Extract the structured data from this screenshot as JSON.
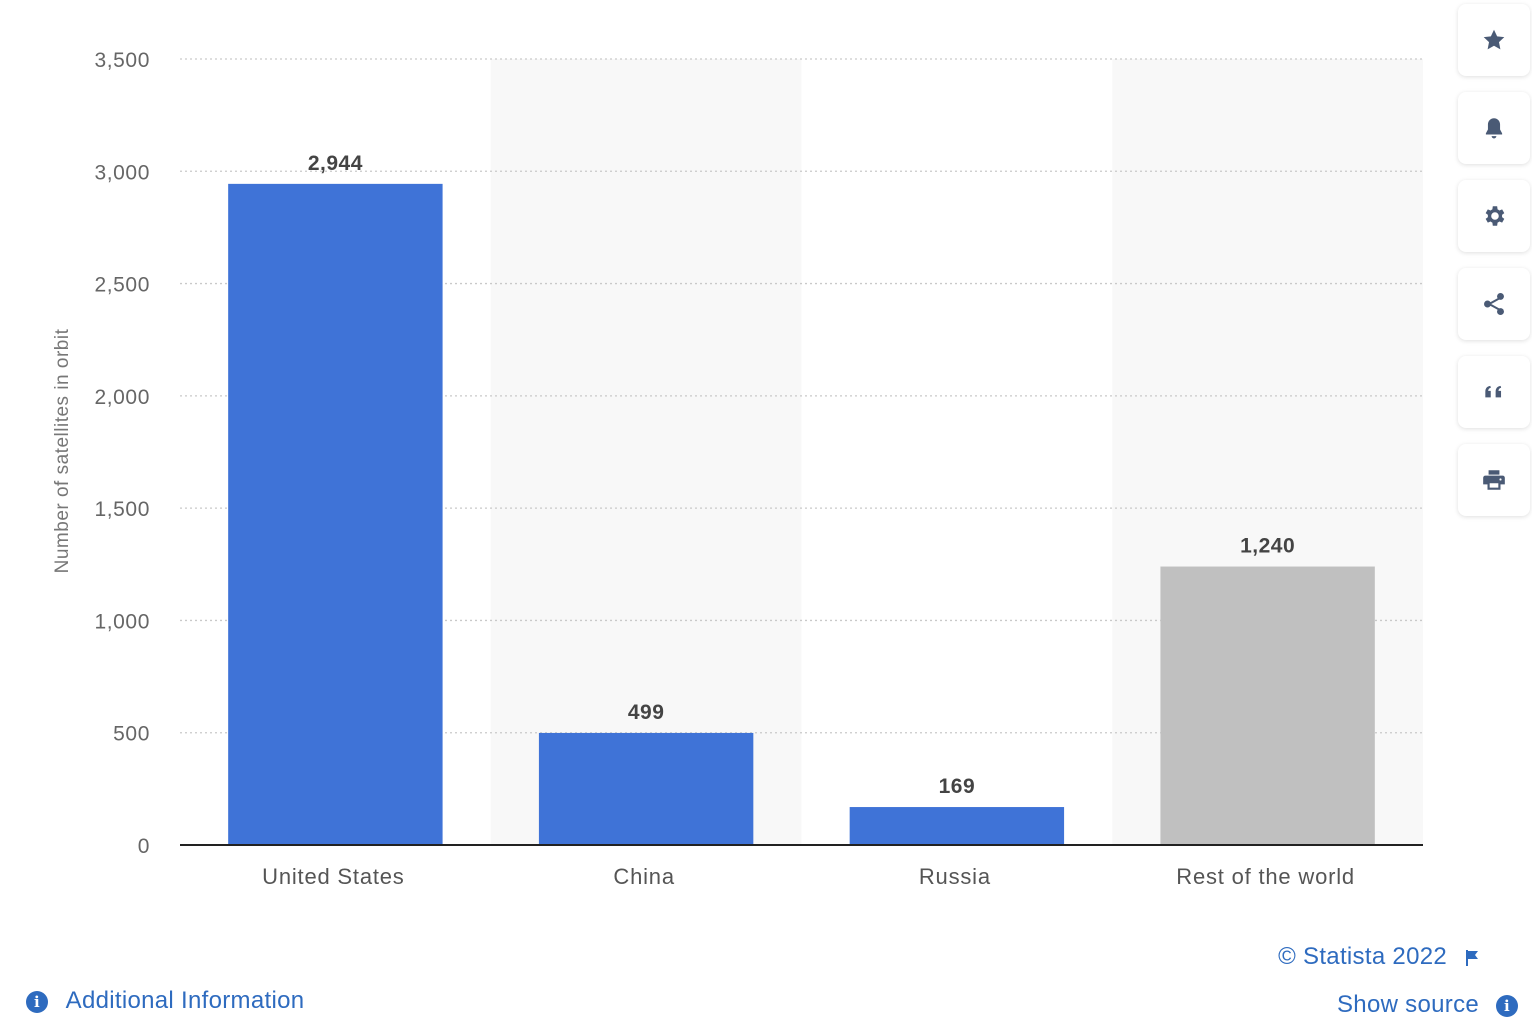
{
  "chart_data": {
    "type": "bar",
    "categories": [
      "United States",
      "China",
      "Russia",
      "Rest of the world"
    ],
    "values": [
      2944,
      499,
      169,
      1240
    ],
    "value_labels": [
      "2,944",
      "499",
      "169",
      "1,240"
    ],
    "bar_colors": [
      "#3f73d7",
      "#3f73d7",
      "#3f73d7",
      "#c0c0c0"
    ],
    "ylabel": "Number of satellites in orbit",
    "ylim": [
      0,
      3500
    ],
    "yticks": [
      0,
      500,
      1000,
      1500,
      2000,
      2500,
      3000,
      3500
    ],
    "ytick_labels": [
      "0",
      "500",
      "1,000",
      "1,500",
      "2,000",
      "2,500",
      "3,000",
      "3,500"
    ],
    "grid": true
  },
  "toolbar": {
    "icons": [
      "star-icon",
      "bell-icon",
      "gear-icon",
      "share-icon",
      "quote-icon",
      "print-icon"
    ]
  },
  "footer": {
    "copyright": "© Statista 2022",
    "show_source": "Show source",
    "additional_info": "Additional Information"
  },
  "colors": {
    "accent": "#2e6bbf",
    "icon": "#4a5a75"
  }
}
